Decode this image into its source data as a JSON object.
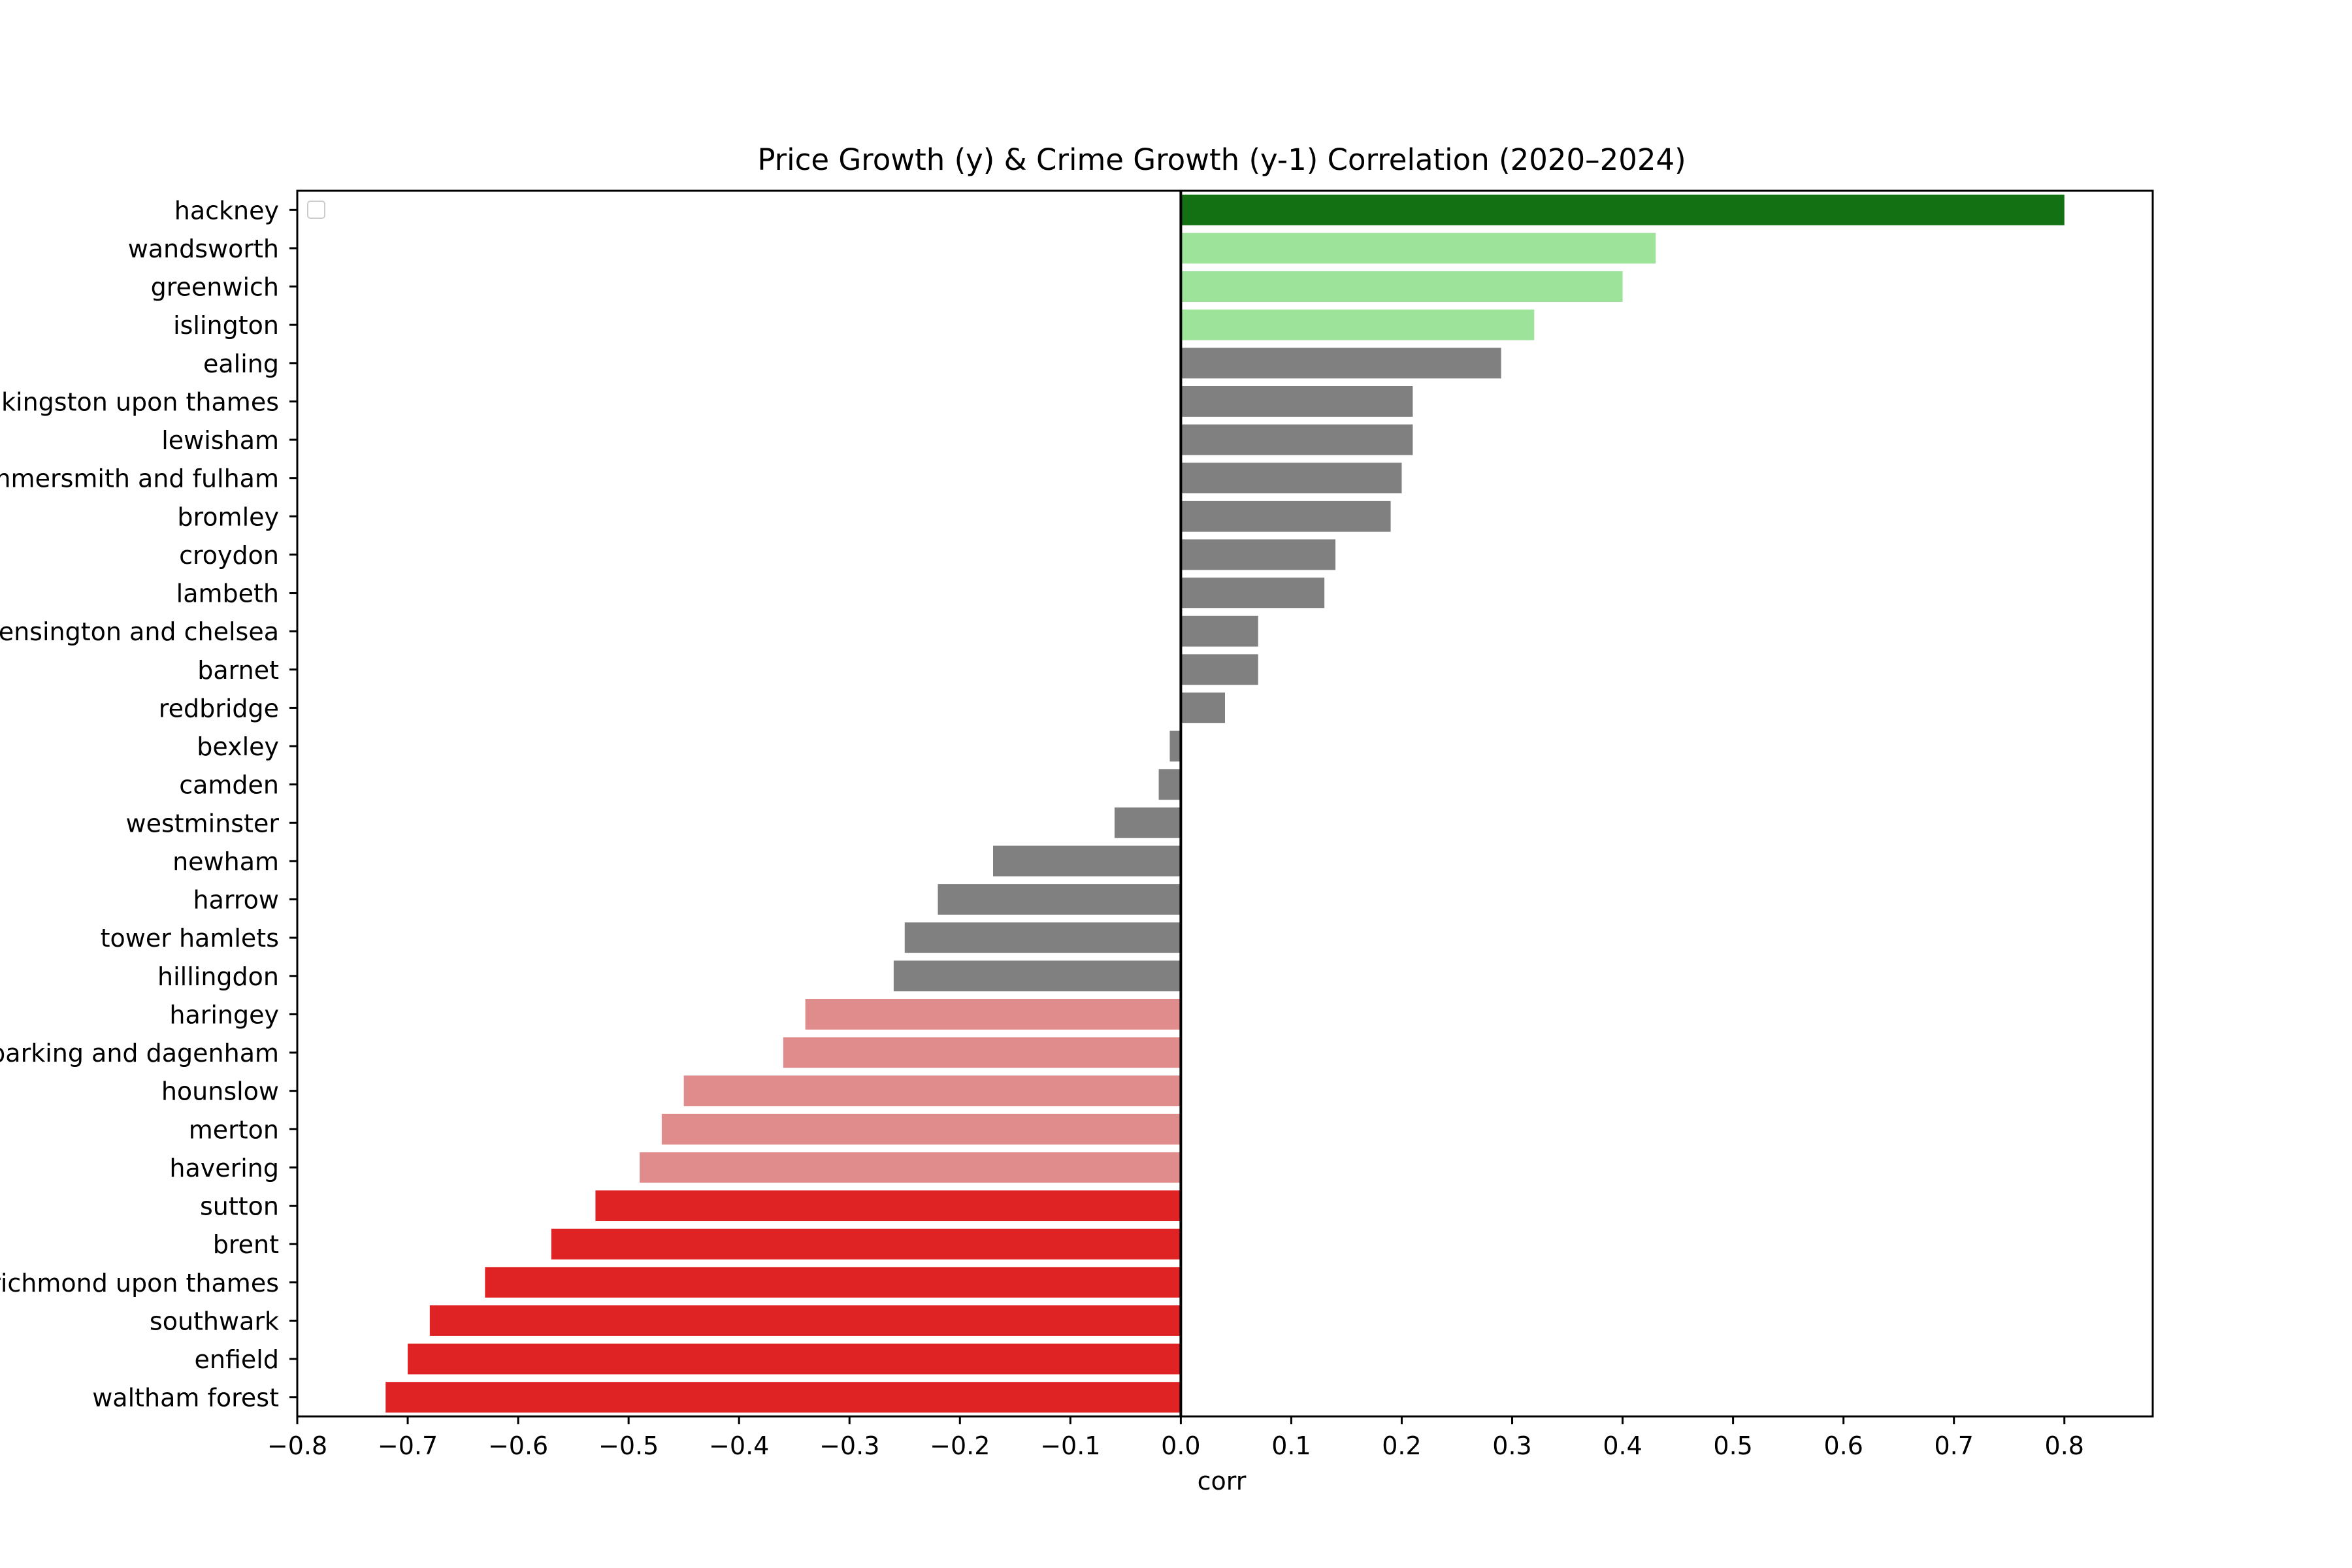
{
  "colors": {
    "strong_positive": "#137113",
    "positive": "#9de39a",
    "neutral": "#808080",
    "negative": "#e08c8c",
    "strong_negative": "#df2224",
    "axis": "#000000",
    "zero_line": "#000000",
    "background": "#ffffff"
  },
  "chart_data": {
    "type": "bar",
    "orientation": "horizontal",
    "title": "Price Growth (y) & Crime Growth (y-1) Correlation (2020–2024)",
    "xlabel": "corr",
    "ylabel": "",
    "xlim": [
      -0.8,
      0.88
    ],
    "xticks": [
      -0.8,
      -0.7,
      -0.6,
      -0.5,
      -0.4,
      -0.3,
      -0.2,
      -0.1,
      0.0,
      0.1,
      0.2,
      0.3,
      0.4,
      0.5,
      0.6,
      0.7,
      0.8
    ],
    "xtick_labels": [
      "−0.8",
      "−0.7",
      "−0.6",
      "−0.5",
      "−0.4",
      "−0.3",
      "−0.2",
      "−0.1",
      "0.0",
      "0.1",
      "0.2",
      "0.3",
      "0.4",
      "0.5",
      "0.6",
      "0.7",
      "0.8"
    ],
    "grid": false,
    "legend": "top-left (empty)",
    "categories": [
      "hackney",
      "wandsworth",
      "greenwich",
      "islington",
      "ealing",
      "kingston upon thames",
      "lewisham",
      "hammersmith and fulham",
      "bromley",
      "croydon",
      "lambeth",
      "kensington and chelsea",
      "barnet",
      "redbridge",
      "bexley",
      "camden",
      "westminster",
      "newham",
      "harrow",
      "tower hamlets",
      "hillingdon",
      "haringey",
      "barking and dagenham",
      "hounslow",
      "merton",
      "havering",
      "sutton",
      "brent",
      "richmond upon thames",
      "southwark",
      "enfield",
      "waltham forest"
    ],
    "values": [
      0.8,
      0.43,
      0.4,
      0.32,
      0.29,
      0.21,
      0.21,
      0.2,
      0.19,
      0.14,
      0.13,
      0.07,
      0.07,
      0.04,
      -0.01,
      -0.02,
      -0.06,
      -0.17,
      -0.22,
      -0.25,
      -0.26,
      -0.34,
      -0.36,
      -0.45,
      -0.47,
      -0.49,
      -0.53,
      -0.57,
      -0.63,
      -0.68,
      -0.7,
      -0.72
    ],
    "color_groups": [
      "strong_positive",
      "positive",
      "positive",
      "positive",
      "neutral",
      "neutral",
      "neutral",
      "neutral",
      "neutral",
      "neutral",
      "neutral",
      "neutral",
      "neutral",
      "neutral",
      "neutral",
      "neutral",
      "neutral",
      "neutral",
      "neutral",
      "neutral",
      "neutral",
      "negative",
      "negative",
      "negative",
      "negative",
      "negative",
      "strong_negative",
      "strong_negative",
      "strong_negative",
      "strong_negative",
      "strong_negative",
      "strong_negative"
    ]
  }
}
